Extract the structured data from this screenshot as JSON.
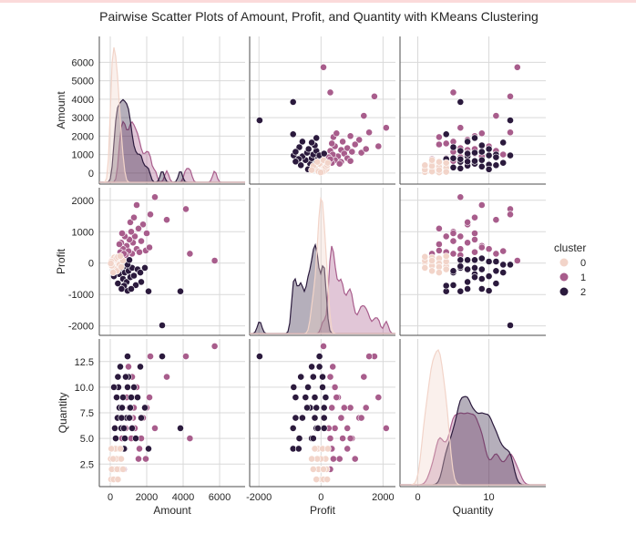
{
  "title": "Pairwise Scatter Plots of Amount, Profit, and Quantity with KMeans Clustering",
  "colors": {
    "cluster_0": "#f2d4c9",
    "cluster_1": "#a85d8c",
    "cluster_2": "#2b1a3d",
    "grid": "#d9d9d9",
    "frame": "#4d4d4d"
  },
  "legend": {
    "title": "cluster",
    "placement": "right",
    "entries": [
      "0",
      "1",
      "2"
    ]
  },
  "chart_data": {
    "type": "scatter",
    "kind": "pairplot",
    "variables": [
      "Amount",
      "Profit",
      "Quantity"
    ],
    "axes": {
      "Amount": {
        "ticks": [
          0,
          1000,
          2000,
          3000,
          4000,
          5000,
          6000
        ],
        "xticks": [
          0,
          2000,
          4000,
          6000
        ],
        "range": [
          -600,
          7400
        ],
        "label": "Amount"
      },
      "Profit": {
        "ticks": [
          -2000,
          -1000,
          0,
          1000,
          2000
        ],
        "xticks": [
          -2000,
          0,
          2000
        ],
        "range": [
          -2300,
          2400
        ],
        "label": "Profit"
      },
      "Quantity": {
        "ticks": [
          2.5,
          5.0,
          7.5,
          10.0,
          12.5
        ],
        "tick_labels": [
          "2.5",
          "5.0",
          "7.5",
          "10.0",
          "12.5"
        ],
        "xticks": [
          0,
          10
        ],
        "xtick_labels": [
          "0",
          "10"
        ],
        "range": [
          -2.5,
          18
        ],
        "yrange": [
          0.3,
          14.7
        ],
        "label": "Quantity"
      }
    },
    "grid": true,
    "diagonal": "kde",
    "points": [
      {
        "a": 5730,
        "p": 80,
        "q": 14,
        "c": 1
      },
      {
        "a": 4150,
        "p": 1720,
        "q": 13,
        "c": 1
      },
      {
        "a": 4370,
        "p": 300,
        "q": 5,
        "c": 1
      },
      {
        "a": 3850,
        "p": -900,
        "q": 6,
        "c": 2
      },
      {
        "a": 2850,
        "p": -1980,
        "q": 13,
        "c": 2
      },
      {
        "a": 3100,
        "p": 1380,
        "q": 11,
        "c": 1
      },
      {
        "a": 2200,
        "p": 1550,
        "q": 13,
        "c": 1
      },
      {
        "a": 1450,
        "p": 1850,
        "q": 9,
        "c": 1
      },
      {
        "a": 2450,
        "p": 2100,
        "q": 6,
        "c": 1
      },
      {
        "a": 2100,
        "p": -900,
        "q": 4,
        "c": 2
      },
      {
        "a": 950,
        "p": -880,
        "q": 10,
        "c": 2
      },
      {
        "a": 1800,
        "p": 1230,
        "q": 7,
        "c": 1
      },
      {
        "a": 2000,
        "p": 950,
        "q": 8,
        "c": 1
      },
      {
        "a": 1700,
        "p": 700,
        "q": 5,
        "c": 1
      },
      {
        "a": 1550,
        "p": 1100,
        "q": 3,
        "c": 1
      },
      {
        "a": 1350,
        "p": 850,
        "q": 6,
        "c": 1
      },
      {
        "a": 1250,
        "p": 650,
        "q": 7,
        "c": 1
      },
      {
        "a": 1150,
        "p": 1000,
        "q": 5,
        "c": 1
      },
      {
        "a": 1050,
        "p": 750,
        "q": 8,
        "c": 1
      },
      {
        "a": 900,
        "p": 550,
        "q": 9,
        "c": 1
      },
      {
        "a": 800,
        "p": 850,
        "q": 4,
        "c": 1
      },
      {
        "a": 700,
        "p": 450,
        "q": 6,
        "c": 1
      },
      {
        "a": 650,
        "p": 950,
        "q": 5,
        "c": 1
      },
      {
        "a": 600,
        "p": 650,
        "q": 7,
        "c": 1
      },
      {
        "a": 550,
        "p": 350,
        "q": 8,
        "c": 1
      },
      {
        "a": 1450,
        "p": 450,
        "q": 10,
        "c": 1
      },
      {
        "a": 1600,
        "p": 350,
        "q": 4,
        "c": 1
      },
      {
        "a": 1950,
        "p": 400,
        "q": 3,
        "c": 1
      },
      {
        "a": 2150,
        "p": 500,
        "q": 9,
        "c": 1
      },
      {
        "a": 1200,
        "p": 300,
        "q": 11,
        "c": 1
      },
      {
        "a": 1000,
        "p": 380,
        "q": 12,
        "c": 1
      },
      {
        "a": 850,
        "p": 250,
        "q": 6,
        "c": 1
      },
      {
        "a": 750,
        "p": 300,
        "q": 2,
        "c": 1
      },
      {
        "a": 500,
        "p": 600,
        "q": 3,
        "c": 1
      },
      {
        "a": 1100,
        "p": 1300,
        "q": 7,
        "c": 1
      },
      {
        "a": 1300,
        "p": 1450,
        "q": 8,
        "c": 1
      },
      {
        "a": 400,
        "p": -200,
        "q": 7,
        "c": 2
      },
      {
        "a": 500,
        "p": -350,
        "q": 8,
        "c": 2
      },
      {
        "a": 600,
        "p": -150,
        "q": 6,
        "c": 2
      },
      {
        "a": 700,
        "p": -500,
        "q": 9,
        "c": 2
      },
      {
        "a": 800,
        "p": -300,
        "q": 5,
        "c": 2
      },
      {
        "a": 900,
        "p": -600,
        "q": 7,
        "c": 2
      },
      {
        "a": 1000,
        "p": -250,
        "q": 11,
        "c": 2
      },
      {
        "a": 1100,
        "p": -450,
        "q": 8,
        "c": 2
      },
      {
        "a": 1200,
        "p": -150,
        "q": 6,
        "c": 2
      },
      {
        "a": 1300,
        "p": -400,
        "q": 10,
        "c": 2
      },
      {
        "a": 1500,
        "p": -200,
        "q": 9,
        "c": 2
      },
      {
        "a": 1700,
        "p": -600,
        "q": 7,
        "c": 2
      },
      {
        "a": 350,
        "p": 150,
        "q": 9,
        "c": 2
      },
      {
        "a": 450,
        "p": 50,
        "q": 10,
        "c": 2
      },
      {
        "a": 550,
        "p": -50,
        "q": 12,
        "c": 2
      },
      {
        "a": 650,
        "p": 100,
        "q": 8,
        "c": 2
      },
      {
        "a": 750,
        "p": -100,
        "q": 6,
        "c": 2
      },
      {
        "a": 850,
        "p": 50,
        "q": 11,
        "c": 2
      },
      {
        "a": 950,
        "p": -50,
        "q": 13,
        "c": 2
      },
      {
        "a": 1050,
        "p": 100,
        "q": 7,
        "c": 2
      },
      {
        "a": 300,
        "p": -250,
        "q": 5,
        "c": 2
      },
      {
        "a": 250,
        "p": 100,
        "q": 6,
        "c": 2
      },
      {
        "a": 1400,
        "p": -700,
        "q": 5,
        "c": 2
      },
      {
        "a": 1650,
        "p": -300,
        "q": 12,
        "c": 2
      },
      {
        "a": 200,
        "p": -420,
        "q": 10,
        "c": 2
      },
      {
        "a": 420,
        "p": -650,
        "q": 11,
        "c": 2
      },
      {
        "a": 760,
        "p": -720,
        "q": 4,
        "c": 2
      },
      {
        "a": 1150,
        "p": -820,
        "q": 9,
        "c": 2
      },
      {
        "a": 1900,
        "p": -150,
        "q": 8,
        "c": 2
      },
      {
        "a": 620,
        "p": -820,
        "q": 7,
        "c": 2
      },
      {
        "a": 50,
        "p": 20,
        "q": 1,
        "c": 0
      },
      {
        "a": 100,
        "p": -30,
        "q": 2,
        "c": 0
      },
      {
        "a": 150,
        "p": 40,
        "q": 3,
        "c": 0
      },
      {
        "a": 200,
        "p": -60,
        "q": 4,
        "c": 0
      },
      {
        "a": 250,
        "p": 30,
        "q": 2,
        "c": 0
      },
      {
        "a": 300,
        "p": -20,
        "q": 3,
        "c": 0
      },
      {
        "a": 350,
        "p": 80,
        "q": 1,
        "c": 0
      },
      {
        "a": 400,
        "p": -100,
        "q": 4,
        "c": 0
      },
      {
        "a": 450,
        "p": 60,
        "q": 3,
        "c": 0
      },
      {
        "a": 500,
        "p": -50,
        "q": 2,
        "c": 0
      },
      {
        "a": 120,
        "p": 120,
        "q": 3,
        "c": 0
      },
      {
        "a": 180,
        "p": -150,
        "q": 1,
        "c": 0
      },
      {
        "a": 220,
        "p": 180,
        "q": 2,
        "c": 0
      },
      {
        "a": 280,
        "p": -200,
        "q": 4,
        "c": 0
      },
      {
        "a": 330,
        "p": 150,
        "q": 3,
        "c": 0
      },
      {
        "a": 80,
        "p": -80,
        "q": 2,
        "c": 0
      },
      {
        "a": 60,
        "p": 50,
        "q": 4,
        "c": 0
      },
      {
        "a": 380,
        "p": -250,
        "q": 2,
        "c": 0
      },
      {
        "a": 420,
        "p": 200,
        "q": 1,
        "c": 0
      },
      {
        "a": 30,
        "p": -10,
        "q": 3,
        "c": 0
      },
      {
        "a": 600,
        "p": -120,
        "q": 3,
        "c": 0
      },
      {
        "a": 700,
        "p": 80,
        "q": 2,
        "c": 0
      },
      {
        "a": 550,
        "p": 220,
        "q": 4,
        "c": 0
      },
      {
        "a": 160,
        "p": -300,
        "q": 3,
        "c": 0
      }
    ]
  }
}
